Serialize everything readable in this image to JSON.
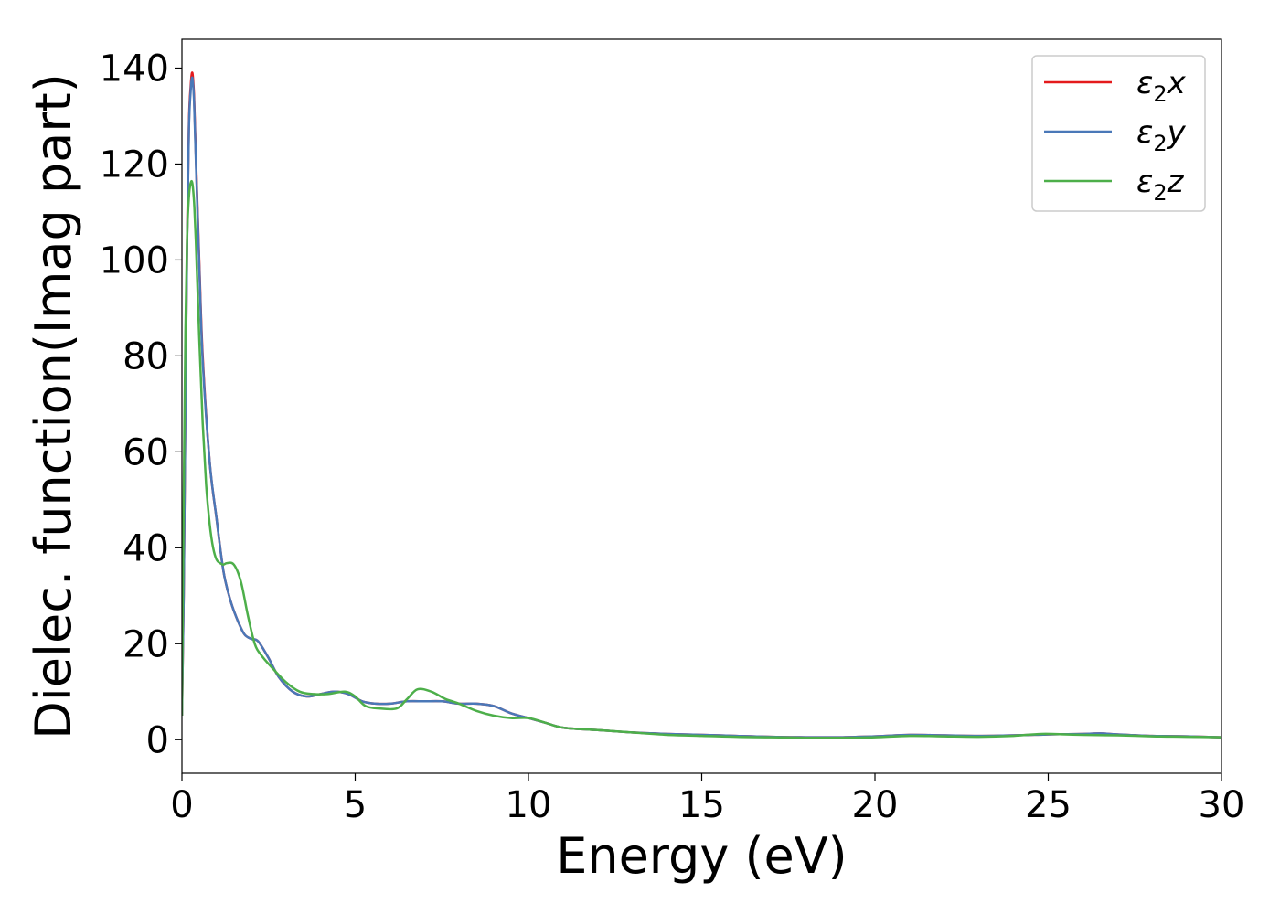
{
  "chart_data": {
    "type": "line",
    "title": "",
    "xlabel": "Energy (eV)",
    "ylabel": "Dielec. function(Imag part)",
    "xlim": [
      0,
      30
    ],
    "ylim": [
      -7,
      146
    ],
    "xticks": [
      0,
      5,
      10,
      15,
      20,
      25,
      30
    ],
    "yticks": [
      0,
      20,
      40,
      60,
      80,
      100,
      120,
      140
    ],
    "grid": false,
    "legend_position": "top-right",
    "series": [
      {
        "name": "ε2x",
        "legend_sym": "ε",
        "legend_sub": "2",
        "legend_axis": "x",
        "color": "#e41a1c",
        "x": [
          0,
          0.05,
          0.1,
          0.15,
          0.2,
          0.25,
          0.3,
          0.35,
          0.4,
          0.5,
          0.6,
          0.8,
          1.0,
          1.2,
          1.4,
          1.6,
          1.8,
          2.0,
          2.2,
          2.5,
          2.8,
          3.2,
          3.6,
          4.0,
          4.4,
          4.8,
          5.2,
          5.6,
          6.0,
          6.5,
          7.0,
          7.5,
          8.0,
          8.5,
          9.0,
          9.5,
          10.0,
          10.5,
          11.0,
          12.0,
          13.0,
          14.0,
          15.0,
          16.0,
          17.0,
          18.0,
          18.5,
          19.0,
          20.0,
          21.0,
          22.0,
          23.0,
          24.0,
          25.0,
          26.0,
          26.5,
          27.0,
          28.0,
          29.0,
          30.0
        ],
        "y": [
          5,
          30,
          70,
          105,
          128,
          136,
          139,
          134,
          122,
          100,
          80,
          58,
          46,
          35,
          29,
          25,
          22,
          21,
          20.5,
          17,
          13,
          10,
          9,
          9.5,
          10,
          9.5,
          8,
          7.5,
          7.5,
          8,
          8,
          8,
          7.5,
          7.5,
          7,
          5.5,
          4.5,
          3.5,
          2.5,
          2,
          1.5,
          1.2,
          1,
          0.8,
          0.6,
          0.5,
          0.5,
          0.5,
          0.7,
          1,
          0.9,
          0.8,
          0.9,
          1.1,
          1.2,
          1.3,
          1.1,
          0.8,
          0.7,
          0.5
        ]
      },
      {
        "name": "ε2y",
        "legend_sym": "ε",
        "legend_sub": "2",
        "legend_axis": "y",
        "color": "#4a78b8",
        "x": [
          0,
          0.05,
          0.1,
          0.15,
          0.2,
          0.25,
          0.3,
          0.35,
          0.4,
          0.5,
          0.6,
          0.8,
          1.0,
          1.2,
          1.4,
          1.6,
          1.8,
          2.0,
          2.2,
          2.5,
          2.8,
          3.2,
          3.6,
          4.0,
          4.4,
          4.8,
          5.2,
          5.6,
          6.0,
          6.5,
          7.0,
          7.5,
          8.0,
          8.5,
          9.0,
          9.5,
          10.0,
          10.5,
          11.0,
          12.0,
          13.0,
          14.0,
          15.0,
          16.0,
          17.0,
          18.0,
          18.5,
          19.0,
          20.0,
          21.0,
          22.0,
          23.0,
          24.0,
          25.0,
          26.0,
          26.5,
          27.0,
          28.0,
          29.0,
          30.0
        ],
        "y": [
          5,
          30,
          70,
          104,
          127,
          135,
          138,
          133,
          121,
          99,
          79,
          58,
          46,
          35,
          29,
          25,
          22,
          21,
          20.5,
          17,
          13,
          10,
          9,
          9.5,
          10,
          9.5,
          8,
          7.5,
          7.5,
          8,
          8,
          8,
          7.5,
          7.5,
          7,
          5.5,
          4.5,
          3.5,
          2.5,
          2,
          1.5,
          1.2,
          1,
          0.8,
          0.6,
          0.5,
          0.5,
          0.5,
          0.7,
          1,
          0.9,
          0.8,
          0.9,
          1.1,
          1.2,
          1.3,
          1.1,
          0.8,
          0.7,
          0.5
        ]
      },
      {
        "name": "ε2z",
        "legend_sym": "ε",
        "legend_sub": "2",
        "legend_axis": "z",
        "color": "#4daf4a",
        "x": [
          0,
          0.05,
          0.1,
          0.15,
          0.2,
          0.25,
          0.3,
          0.35,
          0.4,
          0.5,
          0.6,
          0.7,
          0.8,
          0.9,
          1.0,
          1.1,
          1.2,
          1.3,
          1.5,
          1.7,
          1.9,
          2.1,
          2.3,
          2.6,
          3.0,
          3.4,
          3.8,
          4.2,
          4.7,
          5.0,
          5.3,
          5.7,
          6.2,
          6.5,
          6.8,
          7.2,
          7.6,
          8.0,
          8.5,
          9.0,
          9.5,
          10.0,
          10.5,
          11.0,
          12.0,
          13.0,
          14.0,
          15.0,
          16.0,
          17.0,
          18.0,
          19.0,
          20.0,
          21.0,
          22.0,
          23.0,
          24.0,
          24.8,
          25.5,
          26.0,
          27.0,
          28.0,
          29.0,
          30.0
        ],
        "y": [
          5,
          50,
          85,
          105,
          113,
          116,
          116,
          112,
          104,
          84,
          66,
          53,
          45,
          40,
          37.5,
          36.8,
          36.5,
          36.8,
          36.5,
          33,
          26,
          20,
          17.5,
          15,
          12,
          10,
          9.5,
          9.5,
          10,
          9,
          7,
          6.5,
          6.5,
          8.5,
          10.5,
          10,
          8.5,
          7.5,
          6,
          5,
          4.5,
          4.5,
          3.5,
          2.5,
          2,
          1.5,
          1,
          0.8,
          0.6,
          0.5,
          0.4,
          0.4,
          0.5,
          0.8,
          0.7,
          0.6,
          0.8,
          1.2,
          1.1,
          1.0,
          0.9,
          0.7,
          0.6,
          0.5
        ]
      }
    ]
  }
}
